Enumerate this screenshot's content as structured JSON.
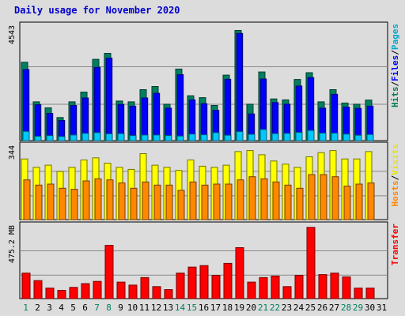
{
  "chart_data": [
    {
      "type": "bar",
      "title": "Daily usage for November 2020",
      "categories": [
        "1",
        "2",
        "3",
        "4",
        "5",
        "6",
        "7",
        "8",
        "9",
        "10",
        "11",
        "12",
        "13",
        "14",
        "15",
        "16",
        "17",
        "18",
        "19",
        "20",
        "21",
        "22",
        "23",
        "24",
        "25",
        "26",
        "27",
        "28",
        "29",
        "30",
        "31"
      ],
      "weekend_days": [
        "1",
        "7",
        "8",
        "14",
        "15",
        "21",
        "22",
        "28",
        "29"
      ],
      "ylim": [
        0,
        4543
      ],
      "ymax_label": "4543",
      "right_labels": [
        "Hits",
        "/",
        "Files",
        "/",
        "Pages"
      ],
      "right_label_colors": [
        "#007b5a",
        "#000000",
        "#0000ff",
        "#000000",
        "#00aacc"
      ],
      "series": [
        {
          "name": "Hits",
          "color": "#008060",
          "values": [
            3230,
            1600,
            1350,
            950,
            1600,
            2000,
            3350,
            3600,
            1630,
            1600,
            2100,
            2230,
            1500,
            2950,
            1850,
            1770,
            1450,
            2700,
            4543,
            1500,
            2830,
            1720,
            1680,
            2520,
            2800,
            1600,
            2100,
            1550,
            1500,
            1670,
            0
          ]
        },
        {
          "name": "Files",
          "color": "#0000ff",
          "values": [
            2930,
            1480,
            1120,
            830,
            1450,
            1760,
            3020,
            3400,
            1490,
            1420,
            1760,
            1950,
            1340,
            2720,
            1680,
            1520,
            1250,
            2530,
            4420,
            1100,
            2540,
            1570,
            1500,
            2250,
            2600,
            1340,
            1910,
            1380,
            1330,
            1420,
            0
          ]
        },
        {
          "name": "Pages",
          "color": "#00c8ff",
          "values": [
            380,
            180,
            210,
            170,
            230,
            300,
            330,
            280,
            290,
            210,
            230,
            230,
            210,
            190,
            270,
            240,
            330,
            220,
            370,
            260,
            460,
            290,
            300,
            340,
            420,
            310,
            310,
            270,
            220,
            250,
            0
          ]
        }
      ]
    },
    {
      "type": "bar",
      "ylim": [
        0,
        344
      ],
      "ymax_label": "344",
      "right_labels": [
        "Hosts",
        "/",
        "Visits"
      ],
      "right_label_colors": [
        "#ff8800",
        "#000000",
        "#e6e600"
      ],
      "series": [
        {
          "name": "Visits",
          "color": "#ffff00",
          "values": [
            290,
            250,
            260,
            230,
            250,
            285,
            295,
            270,
            250,
            240,
            315,
            260,
            250,
            235,
            285,
            255,
            250,
            260,
            325,
            330,
            310,
            280,
            265,
            250,
            300,
            320,
            330,
            290,
            290,
            325,
            0
          ]
        },
        {
          "name": "Hosts",
          "color": "#ff8800",
          "values": [
            190,
            165,
            170,
            150,
            145,
            185,
            195,
            190,
            175,
            150,
            180,
            165,
            165,
            140,
            180,
            165,
            170,
            170,
            190,
            205,
            195,
            180,
            165,
            150,
            215,
            215,
            205,
            160,
            170,
            175,
            0
          ]
        }
      ]
    },
    {
      "type": "bar",
      "ylim": [
        0,
        475.2
      ],
      "ymax_label": "475.2 MB",
      "right_labels": [
        "Transfer"
      ],
      "right_label_colors": [
        "#ff0000"
      ],
      "series": [
        {
          "name": "Transfer",
          "color": "#ff0000",
          "values": [
            170,
            120,
            70,
            55,
            75,
            100,
            115,
            355,
            110,
            90,
            140,
            80,
            60,
            170,
            210,
            220,
            155,
            235,
            340,
            110,
            140,
            150,
            80,
            155,
            475,
            160,
            170,
            145,
            70,
            70,
            0
          ]
        }
      ]
    }
  ]
}
